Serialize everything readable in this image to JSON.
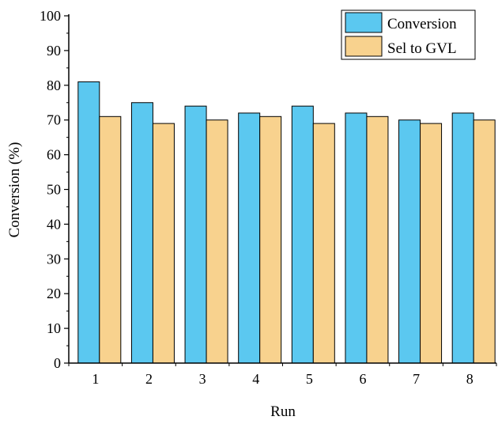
{
  "chart_data": {
    "type": "bar",
    "xlabel": "Run",
    "ylabel": "Conversion (%)",
    "categories": [
      "1",
      "2",
      "3",
      "4",
      "5",
      "6",
      "7",
      "8"
    ],
    "ylim": [
      0,
      100
    ],
    "yticks": [
      0,
      10,
      20,
      30,
      40,
      50,
      60,
      70,
      80,
      90,
      100
    ],
    "legend_position": "top-right",
    "grid": false,
    "series": [
      {
        "name": "Conversion",
        "color": "#5BC8F0",
        "values": [
          81,
          75,
          74,
          72,
          74,
          72,
          70,
          72
        ]
      },
      {
        "name": "Sel to GVL",
        "color": "#F8D28E",
        "values": [
          71,
          69,
          70,
          71,
          69,
          71,
          69,
          70
        ]
      }
    ]
  }
}
